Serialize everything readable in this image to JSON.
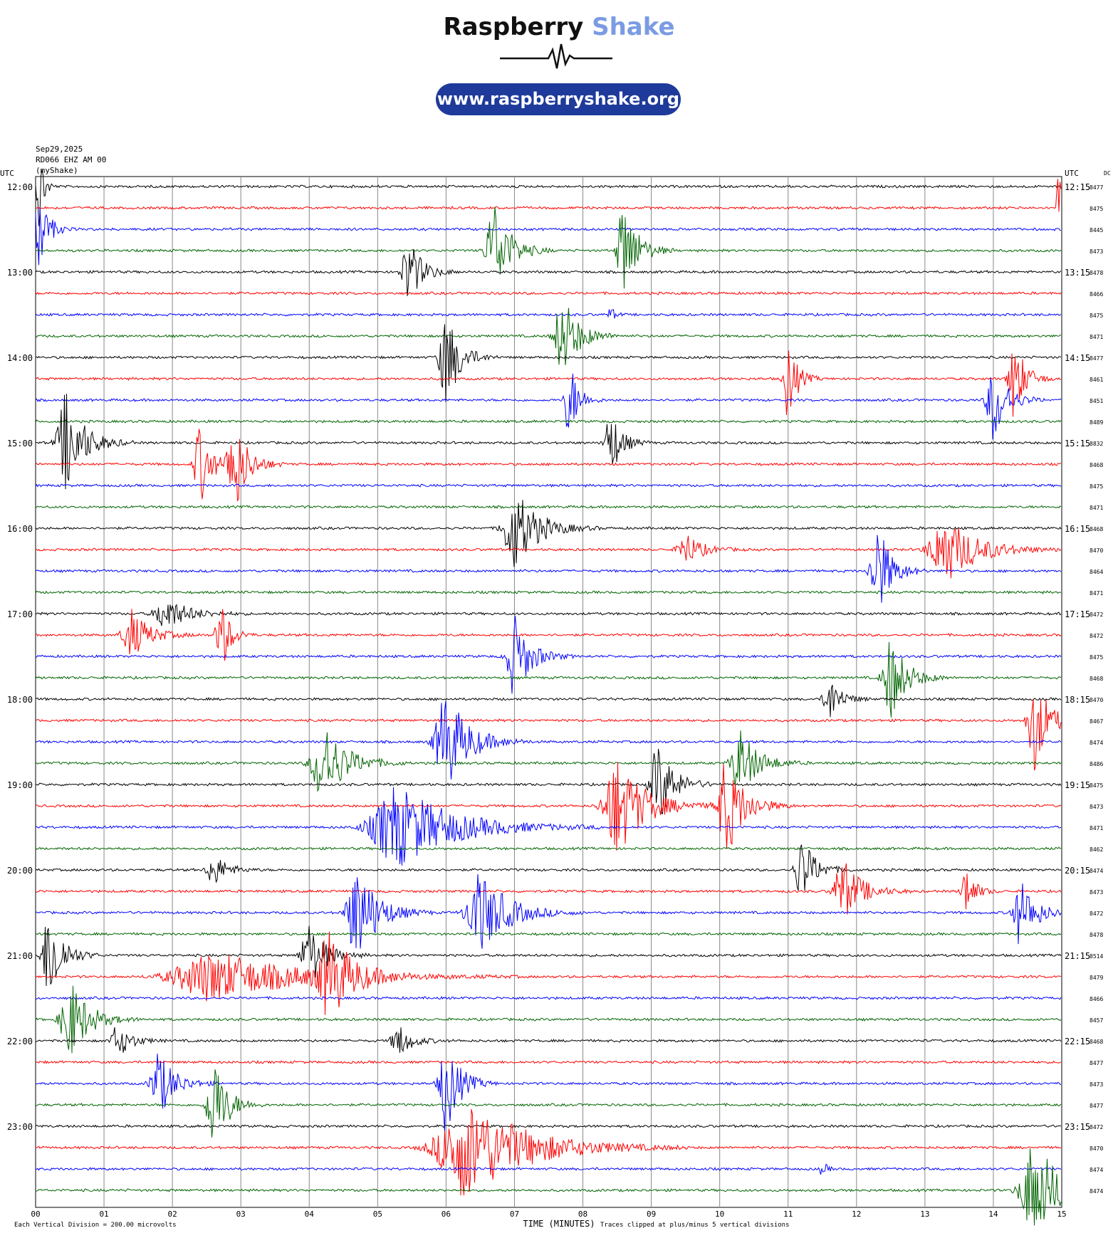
{
  "brand": {
    "name_dark": "Raspberry",
    "name_light": "Shake",
    "url": "www.raspberryshake.org"
  },
  "station": {
    "date": "Sep29,2025",
    "channel": "RD066 EHZ AM 00",
    "source": "(myShake)"
  },
  "axis": {
    "left_unit": "UTC",
    "right_unit": "UTC",
    "dc_label": "DC",
    "xlabel": "TIME (MINUTES)",
    "footer_left": "Each Vertical Division =  200.00 microvolts",
    "footer_right": "Traces clipped at plus/minus 5 vertical divisions"
  },
  "colors": {
    "trace_cycle": [
      "#000000",
      "#ff0000",
      "#0000ff",
      "#006400"
    ],
    "grid": "#888888"
  },
  "chart_data": {
    "type": "line",
    "title": "",
    "xlabel": "TIME (MINUTES)",
    "ylabel": "",
    "xlim": [
      0,
      15
    ],
    "x_ticks": [
      "00",
      "01",
      "02",
      "03",
      "04",
      "05",
      "06",
      "07",
      "08",
      "09",
      "10",
      "11",
      "12",
      "13",
      "14",
      "15"
    ],
    "left_hour_labels": [
      "12:00",
      "13:00",
      "14:00",
      "15:00",
      "16:00",
      "17:00",
      "18:00",
      "19:00",
      "20:00",
      "21:00",
      "22:00",
      "23:00"
    ],
    "right_hour_labels": [
      "12:15",
      "13:15",
      "14:15",
      "15:15",
      "16:15",
      "17:15",
      "18:15",
      "19:15",
      "20:15",
      "21:15",
      "22:15",
      "23:15"
    ],
    "dc_offsets": [
      8477,
      8475,
      8445,
      8473,
      8478,
      8466,
      8475,
      8471,
      8477,
      8461,
      8451,
      8489,
      8832,
      8468,
      8475,
      8471,
      8468,
      8470,
      8464,
      8471,
      8472,
      8472,
      8475,
      8468,
      8470,
      8467,
      8474,
      8486,
      8475,
      8473,
      8471,
      8462,
      8474,
      8473,
      8472,
      8478,
      8514,
      8479,
      8466,
      8457,
      8468,
      8477,
      8473,
      8477,
      8472,
      8470,
      8474,
      8474
    ],
    "events": [
      {
        "line": 0,
        "minute": 0.05,
        "amp": 6,
        "dur": 0.1
      },
      {
        "line": 1,
        "minute": 14.95,
        "amp": 6,
        "dur": 0.08
      },
      {
        "line": 2,
        "minute": 0.05,
        "amp": 5,
        "dur": 0.2
      },
      {
        "line": 3,
        "minute": 6.7,
        "amp": 6,
        "dur": 0.35
      },
      {
        "line": 3,
        "minute": 8.6,
        "amp": 6,
        "dur": 0.3
      },
      {
        "line": 4,
        "minute": 5.45,
        "amp": 4,
        "dur": 0.3
      },
      {
        "line": 6,
        "minute": 8.4,
        "amp": 1,
        "dur": 0.1
      },
      {
        "line": 7,
        "minute": 7.7,
        "amp": 5,
        "dur": 0.35
      },
      {
        "line": 8,
        "minute": 6.0,
        "amp": 6,
        "dur": 0.3
      },
      {
        "line": 9,
        "minute": 11.0,
        "amp": 5,
        "dur": 0.2
      },
      {
        "line": 9,
        "minute": 14.3,
        "amp": 5,
        "dur": 0.25
      },
      {
        "line": 10,
        "minute": 7.8,
        "amp": 5,
        "dur": 0.2
      },
      {
        "line": 10,
        "minute": 14.0,
        "amp": 5,
        "dur": 0.3
      },
      {
        "line": 12,
        "minute": 0.45,
        "amp": 6,
        "dur": 0.4
      },
      {
        "line": 12,
        "minute": 8.4,
        "amp": 4,
        "dur": 0.25
      },
      {
        "line": 13,
        "minute": 2.4,
        "amp": 5,
        "dur": 0.25
      },
      {
        "line": 13,
        "minute": 2.9,
        "amp": 6,
        "dur": 0.3
      },
      {
        "line": 16,
        "minute": 7.0,
        "amp": 5,
        "dur": 0.5
      },
      {
        "line": 17,
        "minute": 9.5,
        "amp": 2,
        "dur": 0.35
      },
      {
        "line": 17,
        "minute": 13.3,
        "amp": 4,
        "dur": 0.7
      },
      {
        "line": 18,
        "minute": 12.3,
        "amp": 6,
        "dur": 0.3
      },
      {
        "line": 20,
        "minute": 1.9,
        "amp": 2,
        "dur": 0.5
      },
      {
        "line": 21,
        "minute": 1.4,
        "amp": 3,
        "dur": 0.4
      },
      {
        "line": 21,
        "minute": 2.7,
        "amp": 5,
        "dur": 0.2
      },
      {
        "line": 22,
        "minute": 7.0,
        "amp": 5,
        "dur": 0.35
      },
      {
        "line": 23,
        "minute": 12.5,
        "amp": 5,
        "dur": 0.35
      },
      {
        "line": 24,
        "minute": 11.6,
        "amp": 3,
        "dur": 0.25
      },
      {
        "line": 25,
        "minute": 14.6,
        "amp": 6,
        "dur": 0.3
      },
      {
        "line": 27,
        "minute": 4.2,
        "amp": 5,
        "dur": 0.5
      },
      {
        "line": 27,
        "minute": 10.3,
        "amp": 4,
        "dur": 0.4
      },
      {
        "line": 26,
        "minute": 6.0,
        "amp": 6,
        "dur": 0.5
      },
      {
        "line": 28,
        "minute": 9.1,
        "amp": 5,
        "dur": 0.35
      },
      {
        "line": 29,
        "minute": 8.5,
        "amp": 6,
        "dur": 0.6
      },
      {
        "line": 29,
        "minute": 10.1,
        "amp": 6,
        "dur": 0.4
      },
      {
        "line": 30,
        "minute": 5.3,
        "amp": 5,
        "dur": 1.2
      },
      {
        "line": 32,
        "minute": 2.6,
        "amp": 2,
        "dur": 0.3
      },
      {
        "line": 32,
        "minute": 11.2,
        "amp": 4,
        "dur": 0.3
      },
      {
        "line": 33,
        "minute": 11.8,
        "amp": 4,
        "dur": 0.4
      },
      {
        "line": 33,
        "minute": 13.6,
        "amp": 3,
        "dur": 0.2
      },
      {
        "line": 34,
        "minute": 4.7,
        "amp": 6,
        "dur": 0.45
      },
      {
        "line": 34,
        "minute": 6.5,
        "amp": 5,
        "dur": 0.6
      },
      {
        "line": 34,
        "minute": 14.4,
        "amp": 4,
        "dur": 0.35
      },
      {
        "line": 36,
        "minute": 0.2,
        "amp": 6,
        "dur": 0.3
      },
      {
        "line": 36,
        "minute": 4.0,
        "amp": 4,
        "dur": 0.35
      },
      {
        "line": 37,
        "minute": 2.6,
        "amp": 3,
        "dur": 1.8
      },
      {
        "line": 37,
        "minute": 4.3,
        "amp": 5,
        "dur": 0.5
      },
      {
        "line": 39,
        "minute": 0.5,
        "amp": 5,
        "dur": 0.4
      },
      {
        "line": 40,
        "minute": 1.2,
        "amp": 2,
        "dur": 0.3
      },
      {
        "line": 40,
        "minute": 5.3,
        "amp": 2,
        "dur": 0.3
      },
      {
        "line": 42,
        "minute": 1.8,
        "amp": 4,
        "dur": 0.35
      },
      {
        "line": 42,
        "minute": 6.0,
        "amp": 6,
        "dur": 0.3
      },
      {
        "line": 43,
        "minute": 2.6,
        "amp": 6,
        "dur": 0.3
      },
      {
        "line": 45,
        "minute": 6.3,
        "amp": 6,
        "dur": 1.3
      },
      {
        "line": 46,
        "minute": 11.5,
        "amp": 1,
        "dur": 0.1
      },
      {
        "line": 47,
        "minute": 14.6,
        "amp": 6,
        "dur": 0.6
      }
    ]
  }
}
